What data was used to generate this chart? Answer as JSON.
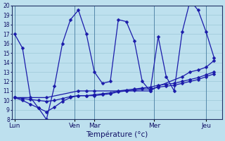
{
  "xlabel": "Température (°c)",
  "bg_color": "#bde0ee",
  "grid_color": "#9dc8d8",
  "line_color": "#1a1aaa",
  "ylim": [
    8,
    20
  ],
  "yticks": [
    8,
    9,
    10,
    11,
    12,
    13,
    14,
    15,
    16,
    17,
    18,
    19,
    20
  ],
  "day_labels": [
    "Lun",
    "Ven",
    "Mar",
    "Mer",
    "Jeu"
  ],
  "day_tick_x": [
    0,
    7.5,
    10,
    17.5,
    24
  ],
  "vline_x": [
    0,
    7.5,
    10,
    17.5,
    24
  ],
  "xlim": [
    -0.3,
    26
  ],
  "lines": [
    {
      "x": [
        0,
        1,
        2,
        3,
        4,
        5,
        6,
        7,
        8,
        9,
        10,
        11,
        12,
        13,
        14,
        15,
        16,
        17,
        18,
        19,
        20,
        21,
        22,
        23,
        24,
        25
      ],
      "y": [
        17.0,
        15.5,
        10.3,
        9.2,
        8.0,
        11.5,
        16.0,
        18.5,
        19.5,
        17.0,
        13.0,
        11.8,
        12.0,
        18.5,
        18.3,
        16.3,
        12.0,
        11.0,
        16.7,
        12.5,
        11.0,
        17.2,
        20.5,
        19.5,
        17.2,
        14.5
      ]
    },
    {
      "x": [
        0,
        1,
        2,
        3,
        4,
        5,
        6,
        7,
        8,
        9,
        10,
        11,
        12,
        13,
        14,
        15,
        16,
        17,
        18,
        19,
        20,
        21,
        22,
        23,
        24,
        25
      ],
      "y": [
        10.3,
        10.2,
        10.1,
        10.0,
        9.9,
        10.0,
        10.2,
        10.4,
        10.5,
        10.5,
        10.6,
        10.7,
        10.8,
        11.0,
        11.1,
        11.2,
        11.3,
        11.4,
        11.6,
        11.7,
        11.8,
        12.0,
        12.2,
        12.4,
        12.7,
        13.0
      ]
    },
    {
      "x": [
        0,
        1,
        2,
        3,
        4,
        5,
        6,
        7,
        8,
        9,
        10,
        11,
        12,
        13,
        14,
        15,
        16,
        17,
        18,
        19,
        20,
        21,
        22,
        23,
        24,
        25
      ],
      "y": [
        10.3,
        10.0,
        9.6,
        9.2,
        8.8,
        9.3,
        9.9,
        10.3,
        10.5,
        10.5,
        10.5,
        10.6,
        10.7,
        10.9,
        11.0,
        11.1,
        11.2,
        11.2,
        11.4,
        11.5,
        11.6,
        11.8,
        12.0,
        12.2,
        12.5,
        12.8
      ]
    },
    {
      "x": [
        0,
        4,
        8,
        9,
        10,
        17,
        18,
        21,
        22,
        23,
        24,
        25
      ],
      "y": [
        10.3,
        10.3,
        11.0,
        11.0,
        11.0,
        11.0,
        11.5,
        12.5,
        13.0,
        13.2,
        13.5,
        14.2
      ]
    }
  ]
}
